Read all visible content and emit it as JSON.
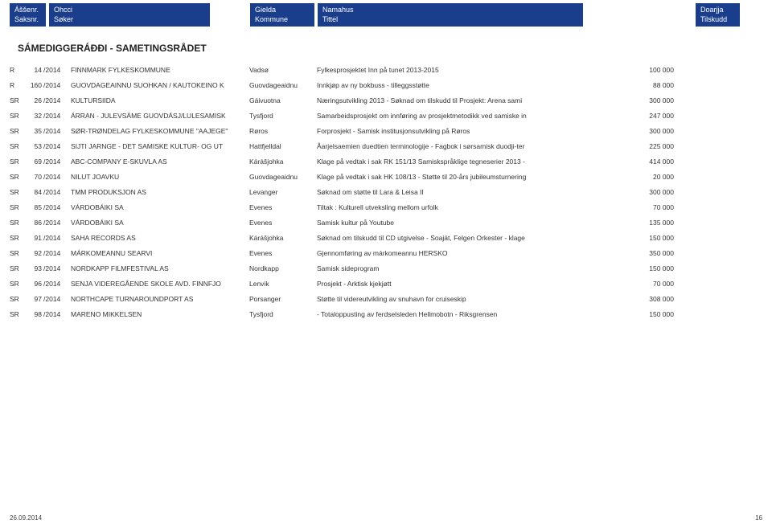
{
  "header": {
    "col1": {
      "line1": "Áššenr.",
      "line2": "Saksnr."
    },
    "col2": {
      "line1": "Ohcci",
      "line2": "Søker"
    },
    "col3": {
      "line1": "Gielda",
      "line2": "Kommune"
    },
    "col4": {
      "line1": "Namahus",
      "line2": "Tittel"
    },
    "col5": {
      "line1": "Doarjja",
      "line2": "Tilskudd"
    }
  },
  "title": "SÁMEDIGGERÁĐĐI - SAMETINGSRÅDET",
  "rows": [
    {
      "type": "R",
      "num": "14",
      "year": "/2014",
      "applicant": "FINNMARK FYLKESKOMMUNE",
      "municipality": "Vadsø",
      "title": "Fylkesprosjektet Inn på tunet 2013-2015",
      "amount": "100 000"
    },
    {
      "type": "R",
      "num": "160",
      "year": "/2014",
      "applicant": "GUOVDAGEAINNU SUOHKAN / KAUTOKEINO K",
      "municipality": "Guovdageaidnu",
      "title": "Innkjøp av ny bokbuss - tilleggsstøtte",
      "amount": "88 000"
    },
    {
      "type": "SR",
      "num": "26",
      "year": "/2014",
      "applicant": "KULTURSIIDA",
      "municipality": "Gáivuotna",
      "title": "Næringsutvikling 2013 - Søknad om tilskudd til Prosjekt: Arena sami",
      "amount": "300 000"
    },
    {
      "type": "SR",
      "num": "32",
      "year": "/2014",
      "applicant": "ÁRRAN - JULEVSÁME GUOVDÁSJ/LULESAMISK",
      "municipality": "Tysfjord",
      "title": "Samarbeidsprosjekt om innføring av prosjektmetodikk ved samiske in",
      "amount": "247 000"
    },
    {
      "type": "SR",
      "num": "35",
      "year": "/2014",
      "applicant": "SØR-TRØNDELAG FYLKESKOMMUNE         \"AAJEGE\"",
      "municipality": "Røros",
      "title": "Forprosjekt - Samisk institusjonsutvikling på Røros",
      "amount": "300 000"
    },
    {
      "type": "SR",
      "num": "53",
      "year": "/2014",
      "applicant": "SIJTI JARNGE - DET SAMISKE KULTUR- OG UT",
      "municipality": "Hattfjelldal",
      "title": "Åarjelsaemien duedtien terminologije - Fagbok i sørsamisk duodji-ter",
      "amount": "225 000"
    },
    {
      "type": "SR",
      "num": "69",
      "year": "/2014",
      "applicant": "ABC-COMPANY E-SKUVLA AS",
      "municipality": "Kárášjohka",
      "title": "Klage på vedtak i sak RK 151/13 Samiskspråklige tegneserier 2013 -",
      "amount": "414 000"
    },
    {
      "type": "SR",
      "num": "70",
      "year": "/2014",
      "applicant": "NILUT JOAVKU",
      "municipality": "Guovdageaidnu",
      "title": "Klage på vedtak i sak HK 108/13 - Støtte til 20-års jubileumsturnering",
      "amount": "20 000"
    },
    {
      "type": "SR",
      "num": "84",
      "year": "/2014",
      "applicant": "TMM PRODUKSJON AS",
      "municipality": "Levanger",
      "title": "Søknad om støtte til Lara & Leisa II",
      "amount": "300 000"
    },
    {
      "type": "SR",
      "num": "85",
      "year": "/2014",
      "applicant": "VÁRDOBÁIKI SA",
      "municipality": "Evenes",
      "title": "Tiltak : Kulturell utveksling mellom urfolk",
      "amount": "70 000"
    },
    {
      "type": "SR",
      "num": "86",
      "year": "/2014",
      "applicant": "VÁRDOBÁIKI SA",
      "municipality": "Evenes",
      "title": "Samisk kultur på Youtube",
      "amount": "135 000"
    },
    {
      "type": "SR",
      "num": "91",
      "year": "/2014",
      "applicant": "SAHA RECORDS AS",
      "municipality": "Kárášjohka",
      "title": "Søknad om tilskudd til CD utgivelse - Soaját, Felgen Orkester - klage",
      "amount": "150 000"
    },
    {
      "type": "SR",
      "num": "92",
      "year": "/2014",
      "applicant": "MÁRKOMEANNU SEARVI",
      "municipality": "Evenes",
      "title": "Gjennomføring av márkomeannu HERSKO",
      "amount": "350 000"
    },
    {
      "type": "SR",
      "num": "93",
      "year": "/2014",
      "applicant": "NORDKAPP FILMFESTIVAL AS",
      "municipality": "Nordkapp",
      "title": "Samisk sideprogram",
      "amount": "150 000"
    },
    {
      "type": "SR",
      "num": "96",
      "year": "/2014",
      "applicant": "SENJA VIDEREGÅENDE SKOLE AVD. FINNFJO",
      "municipality": "Lenvik",
      "title": "Prosjekt - Arktisk kjekjøtt",
      "amount": "70 000"
    },
    {
      "type": "SR",
      "num": "97",
      "year": "/2014",
      "applicant": "NORTHCAPE TURNAROUNDPORT AS",
      "municipality": "Porsanger",
      "title": "Støtte til videreutvikling av snuhavn for cruiseskip",
      "amount": "308 000"
    },
    {
      "type": "SR",
      "num": "98",
      "year": "/2014",
      "applicant": "MARENO MIKKELSEN",
      "municipality": "Tysfjord",
      "title": "- Totaloppusting av ferdselsleden Hellmobotn - Riksgrensen",
      "amount": "150 000"
    }
  ],
  "footer": {
    "date": "26.09.2014",
    "page": "16"
  },
  "style": {
    "header_bg": "#1a3e8c",
    "header_fg": "#ffffff",
    "body_bg": "#ffffff",
    "text_color": "#333333",
    "font_family": "Arial, Helvetica, sans-serif"
  }
}
